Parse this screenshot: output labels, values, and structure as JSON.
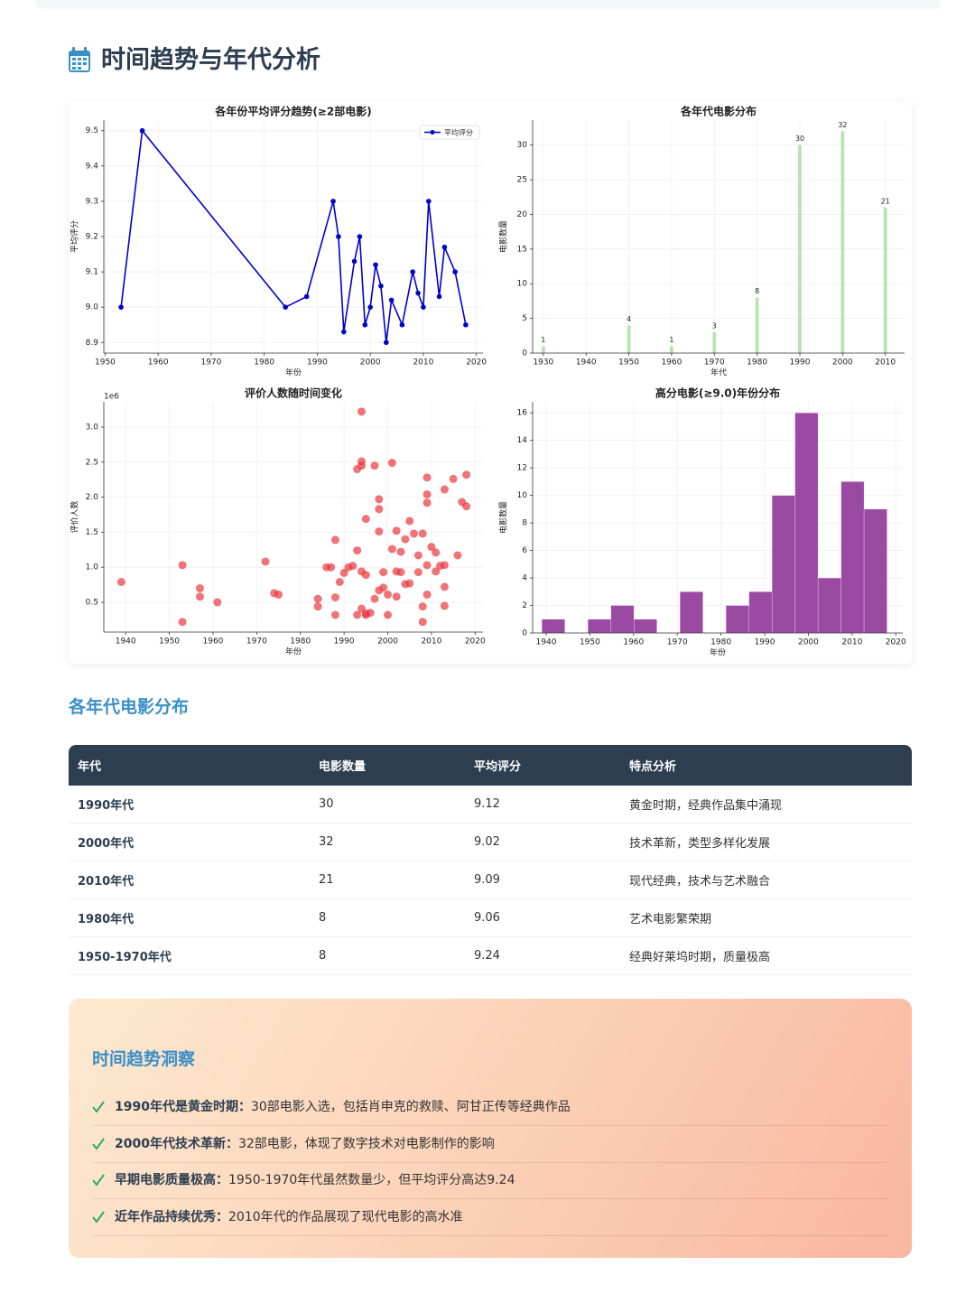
{
  "header": {
    "title": "时间趋势与年代分析"
  },
  "chart_data": [
    {
      "type": "line",
      "title": "各年份平均评分趋势(≥2部电影)",
      "x_label": "年份",
      "y_label": "平均评分",
      "x": [
        1953,
        1957,
        1984,
        1988,
        1993,
        1994,
        1995,
        1997,
        1998,
        1999,
        2000,
        2001,
        2002,
        2003,
        2004,
        2006,
        2008,
        2009,
        2010,
        2011,
        2013,
        2014,
        2016,
        2018
      ],
      "series": [
        {
          "name": "平均评分",
          "color": "#0000cd",
          "values": [
            9.0,
            9.5,
            9.0,
            9.03,
            9.3,
            9.2,
            8.93,
            9.13,
            9.2,
            8.95,
            9.0,
            9.12,
            9.06,
            8.9,
            9.02,
            8.95,
            9.1,
            9.04,
            9.0,
            9.3,
            9.03,
            9.17,
            9.1,
            8.95
          ]
        }
      ],
      "xlim": [
        1949.75,
        2021.25
      ],
      "xticks": [
        1950,
        1960,
        1970,
        1980,
        1990,
        2000,
        2010,
        2020
      ],
      "ylim": [
        8.87,
        9.53
      ],
      "yticks": [
        8.9,
        {
          "value": 9,
          "label": "9.0"
        },
        9.1,
        9.2,
        9.3,
        9.4,
        9.5
      ],
      "grid": true,
      "legend": "upper right"
    },
    {
      "type": "bar",
      "title": "各年代电影分布",
      "x_label": "年代",
      "y_label": "电影数量",
      "x": [
        1930,
        1950,
        1960,
        1970,
        1980,
        1990,
        2000,
        2010
      ],
      "values": [
        1,
        4,
        1,
        3,
        8,
        30,
        32,
        21
      ],
      "color": "#b7e4b0",
      "xlim": [
        1927.5,
        2014.5
      ],
      "xticks": [
        1930,
        1940,
        1950,
        1960,
        1970,
        1980,
        1990,
        2000,
        2010
      ],
      "ylim": [
        0,
        33.6
      ],
      "yticks": [
        0,
        5,
        10,
        15,
        20,
        25,
        30
      ],
      "grid": true
    },
    {
      "type": "scatter",
      "title": "评价人数随时间变化",
      "x_label": "年份",
      "y_label": "评价人数",
      "y_offset_label": "1e6",
      "x": [
        1939,
        1953,
        1953,
        1957,
        1957,
        1961,
        1972,
        1974,
        1975,
        1984,
        1984,
        1986,
        1987,
        1988,
        1988,
        1988,
        1989,
        1990,
        1991,
        1992,
        1993,
        1993,
        1993,
        1994,
        1994,
        1994,
        1994,
        1994,
        1995,
        1995,
        1995,
        1995,
        1996,
        1997,
        1997,
        1998,
        1998,
        1998,
        1998,
        1999,
        1999,
        2000,
        2000,
        2001,
        2001,
        2002,
        2002,
        2002,
        2003,
        2003,
        2004,
        2004,
        2005,
        2005,
        2006,
        2007,
        2007,
        2008,
        2008,
        2008,
        2009,
        2009,
        2009,
        2009,
        2009,
        2010,
        2011,
        2011,
        2012,
        2013,
        2013,
        2013,
        2013,
        2015,
        2016,
        2017,
        2018,
        2018
      ],
      "values": [
        0.79,
        0.22,
        1.03,
        0.7,
        0.58,
        0.5,
        1.08,
        0.63,
        0.61,
        0.55,
        0.44,
        1.0,
        1.0,
        1.39,
        0.32,
        0.57,
        0.79,
        0.92,
        1.0,
        1.02,
        2.4,
        1.24,
        0.32,
        2.45,
        3.22,
        0.94,
        2.51,
        0.41,
        0.89,
        0.32,
        1.69,
        0.34,
        0.35,
        2.45,
        0.55,
        1.51,
        1.97,
        1.83,
        0.67,
        0.93,
        0.71,
        0.32,
        0.61,
        2.49,
        1.26,
        0.58,
        1.52,
        0.94,
        0.93,
        1.22,
        1.4,
        0.76,
        0.77,
        1.66,
        1.48,
        1.17,
        0.93,
        1.48,
        0.44,
        0.22,
        2.04,
        1.03,
        0.61,
        2.28,
        1.92,
        1.29,
        1.21,
        0.94,
        1.02,
        0.72,
        0.45,
        2.11,
        1.03,
        2.26,
        1.17,
        1.93,
        2.32,
        1.87
      ],
      "color": "#e8383d",
      "xlim": [
        1935,
        2021.8
      ],
      "xticks": [
        1940,
        1950,
        1960,
        1970,
        1980,
        1990,
        2000,
        2010,
        2020
      ],
      "ylim": [
        0.075,
        3.36
      ],
      "yticks": [
        0.5,
        {
          "value": 1,
          "label": "1.0"
        },
        1.5,
        {
          "value": 2,
          "label": "2.0"
        },
        2.5,
        {
          "value": 3,
          "label": "3.0"
        }
      ],
      "grid": true
    },
    {
      "type": "histogram",
      "title": "高分电影(≥9.0)年份分布",
      "x_label": "年份",
      "y_label": "电影数量",
      "bins": [
        1939,
        1944.27,
        1949.53,
        1954.8,
        1960.07,
        1965.33,
        1970.6,
        1975.87,
        1981.13,
        1986.4,
        1991.67,
        1996.93,
        2002.2,
        2007.47,
        2012.73,
        2018
      ],
      "values": [
        1,
        0,
        1,
        2,
        1,
        0,
        3,
        0,
        2,
        3,
        10,
        16,
        4,
        11,
        9
      ],
      "color": "#9b4aa3",
      "xlim": [
        1936.9,
        2021.6
      ],
      "xticks": [
        1940,
        1950,
        1960,
        1970,
        1980,
        1990,
        2000,
        2010,
        2020
      ],
      "ylim": [
        0,
        16.8
      ],
      "yticks": [
        0,
        2,
        4,
        6,
        8,
        10,
        12,
        14,
        16
      ],
      "grid": true
    }
  ],
  "section_title": "各年代电影分布",
  "table": {
    "headers": [
      "年代",
      "电影数量",
      "平均评分",
      "特点分析"
    ],
    "rows": [
      [
        "1990年代",
        "30",
        "9.12",
        "黄金时期，经典作品集中涌现"
      ],
      [
        "2000年代",
        "32",
        "9.02",
        "技术革新，类型多样化发展"
      ],
      [
        "2010年代",
        "21",
        "9.09",
        "现代经典，技术与艺术融合"
      ],
      [
        "1980年代",
        "8",
        "9.06",
        "艺术电影繁荣期"
      ],
      [
        "1950-1970年代",
        "8",
        "9.24",
        "经典好莱坞时期，质量极高"
      ]
    ]
  },
  "insights": {
    "title": "时间趋势洞察",
    "items": [
      {
        "label": "1990年代是黄金时期：",
        "text": "30部电影入选，包括肖申克的救赎、阿甘正传等经典作品"
      },
      {
        "label": "2000年代技术革新：",
        "text": "32部电影，体现了数字技术对电影制作的影响"
      },
      {
        "label": "早期电影质量极高：",
        "text": "1950-1970年代虽然数量少，但平均评分高达9.24"
      },
      {
        "label": "近年作品持续优秀：",
        "text": "2010年代的作品展现了现代电影的高水准"
      }
    ]
  }
}
